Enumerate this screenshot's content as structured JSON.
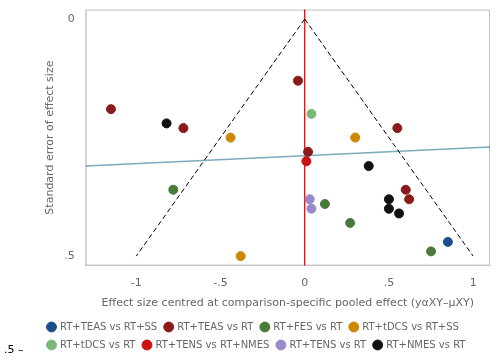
{
  "chart_data": {
    "type": "scatter",
    "xlabel": "Effect size centred at comparison-specific pooled effect (yαXY–μXY)",
    "ylabel": "Standard error of effect size",
    "xlim": [
      -1.3,
      1.1
    ],
    "ylim": [
      0.52,
      -0.02
    ],
    "xticks": [
      -1,
      {
        "value": -0.5,
        "label": "-.5"
      },
      0,
      {
        "value": 0.5,
        "label": ".5"
      },
      1
    ],
    "yticks": [
      0,
      {
        "value": 0.1,
        "label": null
      },
      {
        "value": 0.2,
        "label": null
      },
      {
        "value": 0.3,
        "label": null
      },
      {
        "value": 0.4,
        "label": null
      },
      {
        "value": 0.5,
        "label": ".5"
      }
    ],
    "grid": false,
    "legend": "bottom",
    "marker": "circle",
    "series": [
      {
        "name": "RT+TEAS vs RT+SS",
        "color": "#1a4f8a",
        "x": [
          0.85
        ],
        "values": [
          0.47
        ]
      },
      {
        "name": "RT+TEAS vs RT",
        "color": "#8b1a1a",
        "x": [
          -1.15,
          -0.72,
          -0.04,
          0.02,
          0.55,
          0.6,
          0.62
        ],
        "values": [
          0.19,
          0.23,
          0.13,
          0.28,
          0.23,
          0.36,
          0.38
        ]
      },
      {
        "name": "RT+FES vs RT",
        "color": "#4a7a3a",
        "x": [
          -0.78,
          0.12,
          0.27,
          0.75
        ],
        "values": [
          0.36,
          0.39,
          0.43,
          0.49
        ]
      },
      {
        "name": "RT+tDCS vs RT+SS",
        "color": "#cc8800",
        "x": [
          -0.44,
          0.3,
          -0.38
        ],
        "values": [
          0.25,
          0.25,
          0.5
        ]
      },
      {
        "name": "RT+tDCS vs RT",
        "color": "#7ab87a",
        "x": [
          0.04
        ],
        "values": [
          0.2
        ]
      },
      {
        "name": "RT+TENS vs RT+NMES",
        "color": "#cc1111",
        "x": [
          0.01
        ],
        "values": [
          0.3
        ]
      },
      {
        "name": "RT+TENS vs RT",
        "color": "#9988cc",
        "x": [
          0.03,
          0.04
        ],
        "values": [
          0.38,
          0.4
        ]
      },
      {
        "name": "RT+NMES vs RT",
        "color": "#111111",
        "x": [
          -0.82,
          0.38,
          0.5,
          0.5,
          0.56
        ],
        "values": [
          0.22,
          0.31,
          0.38,
          0.4,
          0.41
        ]
      }
    ],
    "reference_lines": [
      {
        "x": [
          0,
          -1.0
        ],
        "values": [
          0,
          0.5
        ],
        "color": "#000000",
        "line_style": "dashed"
      },
      {
        "x": [
          0,
          1.0
        ],
        "values": [
          0,
          0.5
        ],
        "color": "#000000",
        "line_style": "dashed"
      },
      {
        "x": [
          -1.3,
          1.1
        ],
        "values": [
          0.31,
          0.27
        ],
        "color": "#7aaabb",
        "line_style": "solid"
      }
    ],
    "vline": {
      "x": 0,
      "color": "red"
    },
    "annotations": [
      ".5 –"
    ]
  }
}
